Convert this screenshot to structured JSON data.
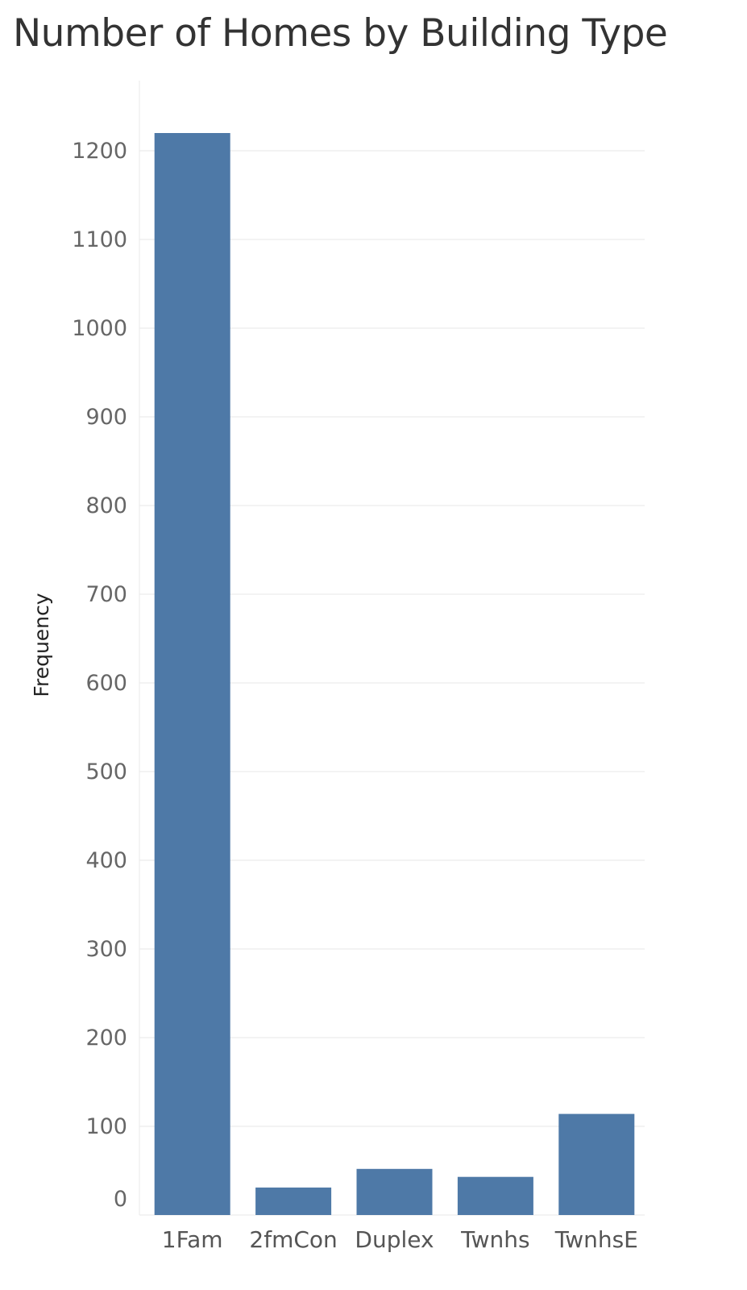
{
  "chart_data": {
    "type": "bar",
    "title": "Number of Homes by Building Type",
    "xlabel": "",
    "ylabel": "Frequency",
    "categories": [
      "1Fam",
      "2fmCon",
      "Duplex",
      "Twnhs",
      "TwnhsE"
    ],
    "values": [
      1220,
      31,
      52,
      43,
      114
    ],
    "ylim": [
      0,
      1200
    ],
    "yticks": [
      0,
      100,
      200,
      300,
      400,
      500,
      600,
      700,
      800,
      900,
      1000,
      1100,
      1200
    ],
    "grid": true,
    "bar_color": "#4e79a7",
    "legend": "none"
  }
}
